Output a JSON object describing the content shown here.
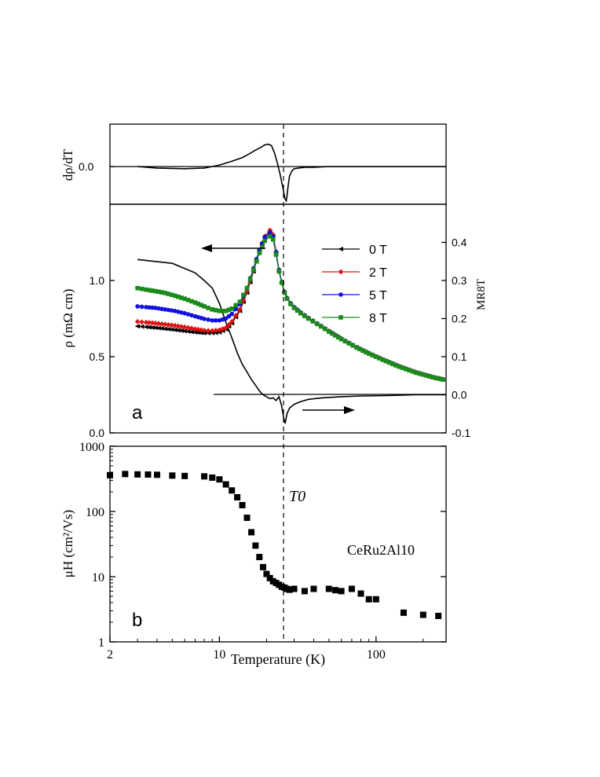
{
  "chart_data": [
    {
      "panel": "top",
      "type": "line",
      "ylabel": "dρ/dT",
      "y_ticks": [
        "0.0"
      ],
      "x_scale": "log",
      "xlim": [
        3,
        280
      ],
      "grid": false,
      "series": [
        {
          "x": [
            3,
            4,
            6,
            8,
            10,
            12,
            14,
            15.5,
            17,
            18.5,
            19.5,
            20.5,
            21.5,
            22.5,
            23.5,
            24.5,
            25.5,
            26.2,
            26.7,
            27,
            27.5,
            28,
            29,
            30,
            32,
            35,
            40,
            50,
            70,
            100,
            150,
            200,
            280
          ],
          "y": [
            0.0,
            -0.002,
            -0.003,
            -0.002,
            0.002,
            0.007,
            0.012,
            0.017,
            0.022,
            0.026,
            0.029,
            0.03,
            0.028,
            0.018,
            0.004,
            -0.012,
            -0.03,
            -0.043,
            -0.046,
            -0.04,
            -0.025,
            -0.013,
            -0.006,
            -0.003,
            -0.002,
            -0.001,
            -0.001,
            0.0,
            0.0,
            0.0,
            0.0,
            0.0,
            0.0
          ]
        }
      ]
    },
    {
      "panel": "a",
      "type": "line",
      "panel_label": "a",
      "ylabel": "ρ (mΩ cm)",
      "ylabel_right": "MR8T",
      "y_ticks": [
        "0.0",
        "0.5",
        "1.0"
      ],
      "y_ticks_right": [
        "-0.1",
        "0.0",
        "0.1",
        "0.2",
        "0.3",
        "0.4"
      ],
      "ylim": [
        0,
        1.5
      ],
      "ylim_right": [
        -0.1,
        0.5
      ],
      "x_scale": "log",
      "xlim": [
        2,
        280
      ],
      "grid": false,
      "legend": "right",
      "legend_entries": [
        "0 T",
        "2 T",
        "5 T",
        "8 T"
      ],
      "series": [
        {
          "name": "0 T",
          "color": "#000000",
          "marker": "left-triangle",
          "x": [
            3,
            3.4,
            3.9,
            4.5,
            5.2,
            6,
            7,
            8,
            9,
            10,
            11,
            12,
            13.5,
            15,
            16.5,
            18,
            19.5,
            21,
            22,
            23,
            24,
            25,
            26,
            27,
            28.5,
            30,
            33,
            37,
            42,
            50,
            60,
            75,
            90,
            110,
            140,
            180,
            230,
            280
          ],
          "y": [
            0.7,
            0.695,
            0.69,
            0.683,
            0.676,
            0.668,
            0.66,
            0.655,
            0.655,
            0.66,
            0.68,
            0.72,
            0.8,
            0.92,
            1.06,
            1.19,
            1.28,
            1.32,
            1.29,
            1.18,
            1.06,
            0.98,
            0.92,
            0.88,
            0.845,
            0.82,
            0.785,
            0.75,
            0.715,
            0.665,
            0.615,
            0.56,
            0.52,
            0.48,
            0.435,
            0.395,
            0.365,
            0.345
          ]
        },
        {
          "name": "2 T",
          "color": "#e01010",
          "marker": "diamond",
          "x": [
            3,
            3.4,
            3.9,
            4.5,
            5.2,
            6,
            7,
            8,
            9,
            10,
            11,
            12,
            13.5,
            15,
            16.5,
            18,
            19.5,
            21,
            22,
            23,
            24,
            25,
            26,
            27,
            28.5,
            30,
            33,
            37,
            42,
            50,
            60,
            75,
            90,
            110,
            140,
            180,
            230,
            280
          ],
          "y": [
            0.73,
            0.725,
            0.72,
            0.712,
            0.704,
            0.694,
            0.682,
            0.672,
            0.67,
            0.675,
            0.69,
            0.73,
            0.81,
            0.93,
            1.07,
            1.2,
            1.29,
            1.33,
            1.3,
            1.19,
            1.07,
            0.99,
            0.925,
            0.885,
            0.85,
            0.825,
            0.79,
            0.753,
            0.718,
            0.668,
            0.618,
            0.562,
            0.522,
            0.482,
            0.437,
            0.397,
            0.366,
            0.346
          ]
        },
        {
          "name": "5 T",
          "color": "#1010e0",
          "marker": "circle",
          "x": [
            3,
            3.4,
            3.9,
            4.5,
            5.2,
            6,
            7,
            8,
            9,
            10,
            11,
            12,
            13.5,
            15,
            16.5,
            18,
            19.5,
            21,
            22,
            23,
            24,
            25,
            26,
            27,
            28.5,
            30,
            33,
            37,
            42,
            50,
            60,
            75,
            90,
            110,
            140,
            180,
            230,
            280
          ],
          "y": [
            0.83,
            0.825,
            0.82,
            0.81,
            0.8,
            0.785,
            0.765,
            0.748,
            0.738,
            0.738,
            0.75,
            0.78,
            0.845,
            0.95,
            1.08,
            1.2,
            1.285,
            1.315,
            1.29,
            1.185,
            1.07,
            0.99,
            0.925,
            0.885,
            0.85,
            0.825,
            0.79,
            0.753,
            0.718,
            0.668,
            0.618,
            0.562,
            0.522,
            0.482,
            0.437,
            0.397,
            0.366,
            0.346
          ]
        },
        {
          "name": "8 T",
          "color": "#1a8a1a",
          "marker": "square",
          "x": [
            3,
            3.4,
            3.9,
            4.5,
            5.2,
            6,
            7,
            8,
            9,
            10,
            11,
            12,
            13.5,
            15,
            16.5,
            18,
            19.5,
            21,
            22,
            23,
            24,
            25,
            26,
            27,
            28.5,
            30,
            33,
            37,
            42,
            50,
            60,
            75,
            90,
            110,
            140,
            180,
            230,
            280
          ],
          "y": [
            0.95,
            0.94,
            0.93,
            0.918,
            0.9,
            0.88,
            0.855,
            0.83,
            0.81,
            0.8,
            0.8,
            0.815,
            0.86,
            0.95,
            1.07,
            1.18,
            1.26,
            1.29,
            1.27,
            1.17,
            1.06,
            0.985,
            0.92,
            0.88,
            0.845,
            0.82,
            0.785,
            0.75,
            0.715,
            0.665,
            0.615,
            0.56,
            0.52,
            0.48,
            0.435,
            0.395,
            0.365,
            0.345
          ]
        }
      ],
      "mr_series": {
        "axis": "right",
        "x": [
          3,
          5,
          7,
          8,
          9,
          10,
          11,
          12,
          13,
          14,
          15,
          16,
          17,
          18,
          19,
          20,
          21,
          22,
          23,
          24,
          25,
          25.7,
          26.3,
          27,
          28,
          30,
          33,
          37,
          45,
          60,
          80,
          120,
          180,
          280
        ],
        "y": [
          0.355,
          0.345,
          0.32,
          0.3,
          0.28,
          0.24,
          0.19,
          0.15,
          0.11,
          0.08,
          0.06,
          0.04,
          0.025,
          0.01,
          0.0,
          -0.005,
          -0.01,
          -0.008,
          -0.015,
          -0.005,
          -0.03,
          -0.06,
          -0.075,
          -0.05,
          -0.035,
          -0.025,
          -0.018,
          -0.012,
          -0.008,
          -0.005,
          -0.003,
          -0.002,
          0.0,
          0.0
        ]
      }
    },
    {
      "panel": "b",
      "type": "scatter",
      "panel_label": "b",
      "ylabel": "μH (cm²/Vs)",
      "xlabel": "Temperature (K)",
      "annotation_T0": "T0",
      "sample_label": "CeRu2Al10",
      "y_scale": "log",
      "x_scale": "log",
      "ylim": [
        1,
        1000
      ],
      "xlim": [
        2,
        280
      ],
      "x_ticks": [
        "2",
        "10",
        "100"
      ],
      "y_ticks": [
        "1",
        "10",
        "100",
        "1000"
      ],
      "grid": false,
      "series": [
        {
          "marker": "square",
          "color": "#000000",
          "x": [
            2,
            2.5,
            3,
            3.5,
            4,
            5,
            6,
            8,
            9,
            10,
            11,
            12,
            13,
            14,
            15,
            16,
            17,
            18,
            19,
            20,
            21,
            22,
            23,
            24,
            25,
            26,
            27,
            28,
            30,
            35,
            40,
            50,
            55,
            60,
            70,
            80,
            90,
            100,
            150,
            200,
            250
          ],
          "y": [
            360,
            375,
            370,
            368,
            365,
            355,
            350,
            345,
            330,
            310,
            260,
            210,
            165,
            125,
            80,
            48,
            30,
            20,
            14,
            11,
            9.5,
            8.5,
            8,
            7.5,
            7,
            6.8,
            6.5,
            6.3,
            6.5,
            6,
            6.5,
            6.5,
            6.2,
            6,
            6.5,
            5.5,
            4.5,
            4.5,
            2.8,
            2.6,
            2.5
          ]
        }
      ]
    }
  ],
  "reference_line": {
    "x_value": 27,
    "style": "dashed"
  },
  "arrows": [
    "left-pointing arrow to ρ axis",
    "right-pointing arrow to MR axis"
  ]
}
